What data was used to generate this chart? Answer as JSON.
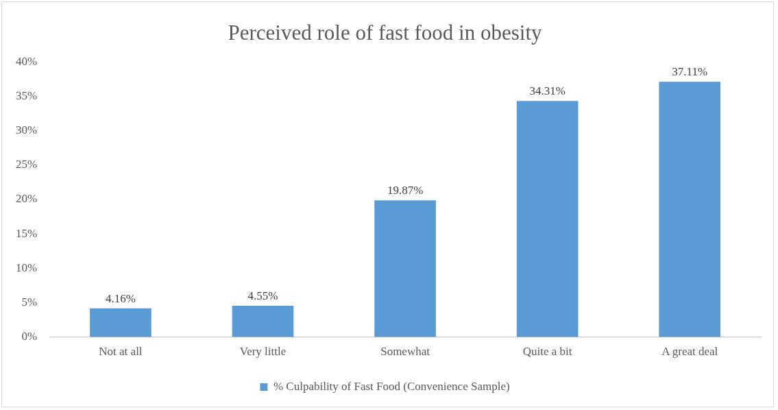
{
  "chart_data": {
    "type": "bar",
    "title": "Perceived role of fast food in obesity",
    "categories": [
      "Not at all",
      "Very little",
      "Somewhat",
      "Quite a bit",
      "A great deal"
    ],
    "series": [
      {
        "name": "% Culpability of Fast Food (Convenience Sample)",
        "color": "#5b9bd5",
        "values": [
          4.16,
          4.55,
          19.87,
          34.31,
          37.11
        ],
        "value_labels": [
          "4.16%",
          "4.55%",
          "19.87%",
          "34.31%",
          "37.11%"
        ]
      }
    ],
    "ylim": [
      0,
      40
    ],
    "yticks": [
      {
        "value": 0,
        "label": "0%"
      },
      {
        "value": 5,
        "label": "5%"
      },
      {
        "value": 10,
        "label": "10%"
      },
      {
        "value": 15,
        "label": "15%"
      },
      {
        "value": 20,
        "label": "20%"
      },
      {
        "value": 25,
        "label": "25%"
      },
      {
        "value": 30,
        "label": "30%"
      },
      {
        "value": 35,
        "label": "35%"
      },
      {
        "value": 40,
        "label": "40%"
      }
    ],
    "legend": "bottom"
  }
}
